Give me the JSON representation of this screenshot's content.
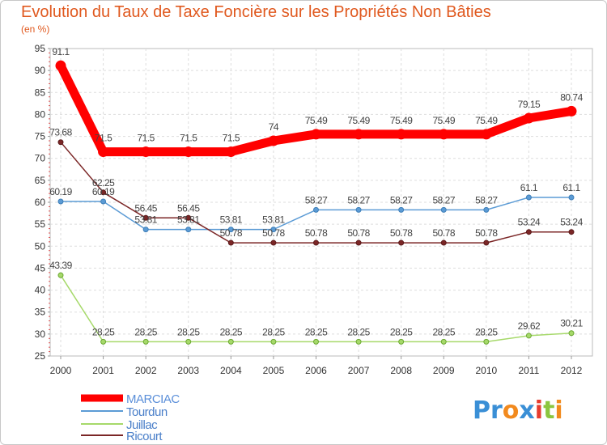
{
  "title": "Evolution du Taux de Taxe Foncière sur les Propriétés Non Bâties",
  "subtitle": "(en %)",
  "logo": {
    "text": "Proxiti",
    "letters": [
      "P",
      "r",
      "o",
      "x",
      "i",
      "t",
      "i"
    ],
    "colors": [
      "#3a8fd6",
      "#3a8fd6",
      "#f28a1e",
      "#3a8fd6",
      "#e63c2e",
      "#8cc63f",
      "#f28a1e"
    ]
  },
  "chart_data": {
    "type": "line",
    "title": "Evolution du Taux de Taxe Foncière sur les Propriétés Non Bâties",
    "ylabel": "(en %)",
    "xlabel": "",
    "ylim": [
      25,
      95
    ],
    "yticks": [
      25,
      30,
      35,
      40,
      45,
      50,
      55,
      60,
      65,
      70,
      75,
      80,
      85,
      90,
      95
    ],
    "categories": [
      "2000",
      "2001",
      "2002",
      "2003",
      "2004",
      "2005",
      "2006",
      "2007",
      "2008",
      "2009",
      "2010",
      "2011",
      "2012"
    ],
    "grid": true,
    "legend_position": "bottom-left",
    "series": [
      {
        "name": "MARCIAC",
        "color": "#ff0000",
        "values": [
          91.1,
          71.5,
          71.5,
          71.5,
          71.5,
          74,
          75.49,
          75.49,
          75.49,
          75.49,
          75.49,
          79.15,
          80.74
        ],
        "labels": [
          "91.1",
          "71.5",
          "71.5",
          "71.5",
          "71.5",
          "74",
          "75.49",
          "75.49",
          "75.49",
          "75.49",
          "75.49",
          "79.15",
          "80.74"
        ]
      },
      {
        "name": "Tourdun",
        "color": "#5b9bd5",
        "values": [
          60.19,
          60.19,
          53.81,
          53.81,
          53.81,
          53.81,
          58.27,
          58.27,
          58.27,
          58.27,
          58.27,
          61.1,
          61.1
        ],
        "labels": [
          "60.19",
          "60.19",
          "53.81",
          "53.81",
          "53.81",
          "53.81",
          "58.27",
          "58.27",
          "58.27",
          "58.27",
          "58.27",
          "61.1",
          "61.1"
        ]
      },
      {
        "name": "Juillac",
        "color": "#a6d96a",
        "values": [
          43.39,
          28.25,
          28.25,
          28.25,
          28.25,
          28.25,
          28.25,
          28.25,
          28.25,
          28.25,
          28.25,
          29.62,
          30.21
        ],
        "labels": [
          "43.39",
          "28.25",
          "28.25",
          "28.25",
          "28.25",
          "28.25",
          "28.25",
          "28.25",
          "28.25",
          "28.25",
          "28.25",
          "29.62",
          "30.21"
        ]
      },
      {
        "name": "Ricourt",
        "color": "#7b2626",
        "values": [
          73.68,
          62.25,
          56.45,
          56.45,
          50.78,
          50.78,
          50.78,
          50.78,
          50.78,
          50.78,
          50.78,
          53.24,
          53.24
        ],
        "labels": [
          "73.68",
          "62.25",
          "56.45",
          "56.45",
          "50.78",
          "50.78",
          "50.78",
          "50.78",
          "50.78",
          "50.78",
          "50.78",
          "53.24",
          "53.24"
        ]
      }
    ]
  }
}
